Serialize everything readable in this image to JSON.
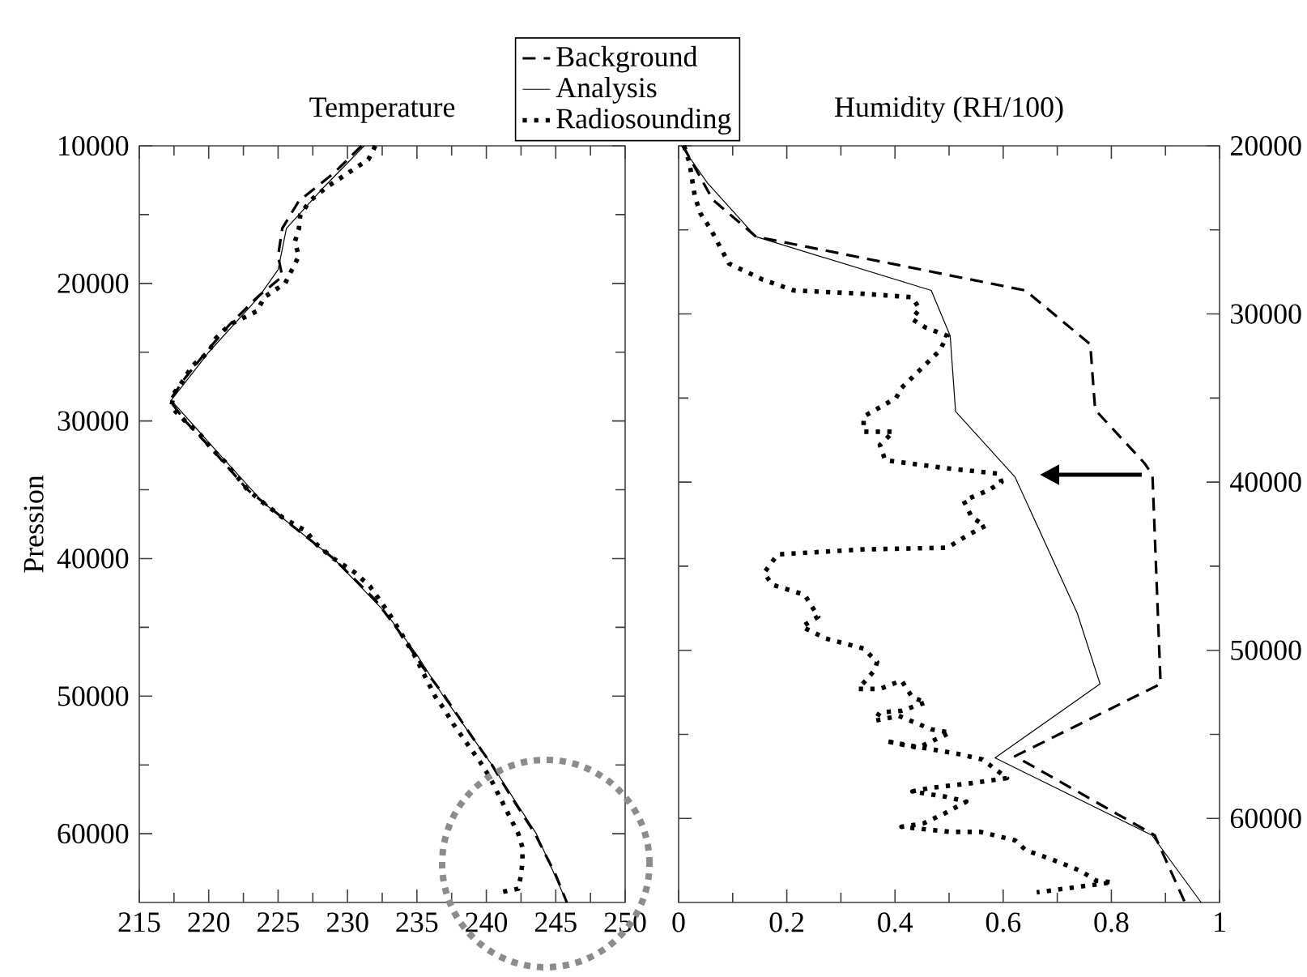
{
  "chart_data": [
    {
      "type": "line",
      "title": "Temperature",
      "ylabel": "Pression",
      "xlim": [
        215,
        250
      ],
      "ylim": [
        65000,
        10000
      ],
      "xticks": [
        215,
        {
          "value": 217.5,
          "label": null
        },
        220,
        {
          "value": 222.5,
          "label": null
        },
        225,
        {
          "value": 227.5,
          "label": null
        },
        230,
        {
          "value": 232.5,
          "label": null
        },
        235,
        {
          "value": 237.5,
          "label": null
        },
        240,
        {
          "value": 242.5,
          "label": null
        },
        245,
        {
          "value": 247.5,
          "label": null
        },
        250
      ],
      "yticks": [
        10000,
        {
          "value": 15000,
          "label": null
        },
        20000,
        {
          "value": 25000,
          "label": null
        },
        30000,
        {
          "value": 35000,
          "label": null
        },
        40000,
        {
          "value": 45000,
          "label": null
        },
        50000,
        {
          "value": 55000,
          "label": null
        },
        60000
      ],
      "legend": "top right",
      "grid": false,
      "marker": "none",
      "series": [
        {
          "name": "Background",
          "color": "#000000",
          "line_style": "dashed",
          "x": [
            231.0,
            229.0,
            226.5,
            225.3,
            225.0,
            225.3,
            223.5,
            221.5,
            219.8,
            218.2,
            217.2,
            218.3,
            220.2,
            222.8,
            226.5,
            229.0,
            232.0,
            233.5,
            235.5,
            237.0,
            239.0,
            240.4,
            241.6,
            243.5,
            245.0,
            245.8
          ],
          "values": [
            10000,
            12000,
            14000,
            16000,
            18000,
            19500,
            21000,
            23000,
            25000,
            27000,
            28500,
            30000,
            32000,
            35000,
            38000,
            40000,
            43000,
            45000,
            48000,
            50000,
            53000,
            55000,
            57000,
            60000,
            63000,
            65000
          ]
        },
        {
          "name": "Analysis",
          "color": "#000000",
          "line_style": "solid",
          "x": [
            231.2,
            228.3,
            225.6,
            225.0,
            223.6,
            220.0,
            217.3,
            220.4,
            224.0,
            229.0,
            232.8,
            235.0,
            236.9,
            240.4,
            243.6,
            245.8
          ],
          "values": [
            10000,
            13000,
            16000,
            19000,
            21000,
            25000,
            28500,
            32000,
            36000,
            40000,
            44000,
            47000,
            50000,
            55000,
            60000,
            65000
          ]
        },
        {
          "name": "Radiosounding",
          "color": "#000000",
          "line_style": "dotted",
          "x": [
            232.0,
            231.5,
            230.0,
            228.5,
            227.3,
            226.6,
            226.5,
            226.2,
            226.5,
            226.0,
            225.5,
            224.0,
            223.5,
            221.5,
            220.5,
            220.0,
            218.8,
            218.2,
            217.5,
            217.3,
            218.3,
            219.4,
            220.2,
            221.2,
            222.0,
            222.8,
            224.0,
            225.3,
            227.0,
            227.8,
            229.0,
            230.5,
            231.6,
            232.3,
            233.0,
            233.6,
            234.2,
            234.8,
            235.3,
            235.8,
            236.3,
            237.0,
            237.6,
            238.3,
            239.0,
            239.7,
            240.3,
            240.8,
            241.3,
            241.8,
            242.3,
            242.6,
            242.6,
            242.5,
            242.3,
            240.8
          ],
          "values": [
            10000,
            11000,
            12000,
            13000,
            14000,
            15000,
            16000,
            17000,
            18000,
            19000,
            20000,
            21000,
            22000,
            23000,
            24000,
            25000,
            26000,
            27000,
            28000,
            29000,
            30000,
            31000,
            32000,
            33000,
            34000,
            35000,
            36000,
            37000,
            38000,
            39000,
            40000,
            41000,
            42000,
            43000,
            44000,
            45000,
            46000,
            47000,
            48000,
            49000,
            50000,
            51000,
            52000,
            53000,
            54000,
            55000,
            56000,
            57000,
            58000,
            59000,
            60000,
            61000,
            62000,
            63000,
            64000,
            64300
          ]
        }
      ]
    },
    {
      "type": "line",
      "title": "Humidity (RH/100)",
      "xlim": [
        0,
        1
      ],
      "ylim": [
        65000,
        20000
      ],
      "xticks": [
        0,
        {
          "value": 0.1,
          "label": null
        },
        0.2,
        {
          "value": 0.3,
          "label": null
        },
        0.4,
        {
          "value": 0.5,
          "label": null
        },
        0.6,
        {
          "value": 0.7,
          "label": null
        },
        0.8,
        {
          "value": 0.9,
          "label": null
        },
        1
      ],
      "yticks": [
        20000,
        {
          "value": 25000,
          "label": null
        },
        30000,
        {
          "value": 35000,
          "label": null
        },
        40000,
        {
          "value": 45000,
          "label": null
        },
        50000,
        {
          "value": 55000,
          "label": null
        },
        60000
      ],
      "grid": false,
      "marker": "none",
      "series": [
        {
          "color": "#000000",
          "line_style": "dashed",
          "x": [
            0.008,
            0.063,
            0.143,
            0.641,
            0.761,
            0.77,
            0.862,
            0.876,
            0.891,
            0.622,
            0.88,
            0.936
          ],
          "values": [
            20000,
            23200,
            25400,
            28600,
            31800,
            35700,
            38900,
            39600,
            52000,
            56300,
            61000,
            65000
          ]
        },
        {
          "color": "#000000",
          "line_style": "solid",
          "x": [
            0.005,
            0.053,
            0.143,
            0.467,
            0.502,
            0.512,
            0.622,
            0.737,
            0.779,
            0.585,
            0.875,
            0.966
          ],
          "values": [
            20000,
            22200,
            25400,
            28600,
            31300,
            35800,
            39700,
            47800,
            52000,
            56400,
            61000,
            65000
          ]
        },
        {
          "color": "#000000",
          "line_style": "dotted",
          "x": [
            0.01,
            0.02,
            0.025,
            0.03,
            0.04,
            0.06,
            0.093,
            0.155,
            0.213,
            0.342,
            0.431,
            0.446,
            0.431,
            0.456,
            0.497,
            0.482,
            0.412,
            0.402,
            0.342,
            0.342,
            0.397,
            0.372,
            0.382,
            0.502,
            0.592,
            0.597,
            0.572,
            0.527,
            0.542,
            0.567,
            0.532,
            0.497,
            0.342,
            0.183,
            0.158,
            0.173,
            0.233,
            0.258,
            0.228,
            0.272,
            0.342,
            0.367,
            0.362,
            0.332,
            0.372,
            0.412,
            0.432,
            0.457,
            0.412,
            0.372,
            0.362,
            0.407,
            0.467,
            0.502,
            0.442,
            0.382,
            0.522,
            0.562,
            0.607,
            0.542,
            0.462,
            0.432,
            0.492,
            0.532,
            0.492,
            0.452,
            0.412,
            0.502,
            0.557,
            0.622,
            0.642,
            0.687,
            0.742,
            0.772,
            0.802,
            0.732,
            0.662
          ],
          "values": [
            20000,
            21000,
            22000,
            23000,
            24000,
            25000,
            27000,
            27950,
            28600,
            28800,
            29000,
            29700,
            30300,
            30800,
            31300,
            32200,
            34400,
            35000,
            36100,
            37000,
            37000,
            37800,
            38700,
            39200,
            39500,
            40000,
            40500,
            41100,
            42100,
            42600,
            43200,
            43900,
            44000,
            44300,
            45400,
            46100,
            46700,
            48000,
            48600,
            49300,
            49900,
            50700,
            51200,
            52300,
            52300,
            51800,
            52800,
            53100,
            53600,
            53700,
            54200,
            53900,
            54700,
            54900,
            55800,
            55400,
            56200,
            56500,
            57600,
            57900,
            58200,
            58400,
            58700,
            59000,
            59700,
            60300,
            60500,
            60800,
            60800,
            61300,
            61900,
            62400,
            63100,
            63700,
            63800,
            64100,
            64400
          ]
        }
      ]
    }
  ]
}
